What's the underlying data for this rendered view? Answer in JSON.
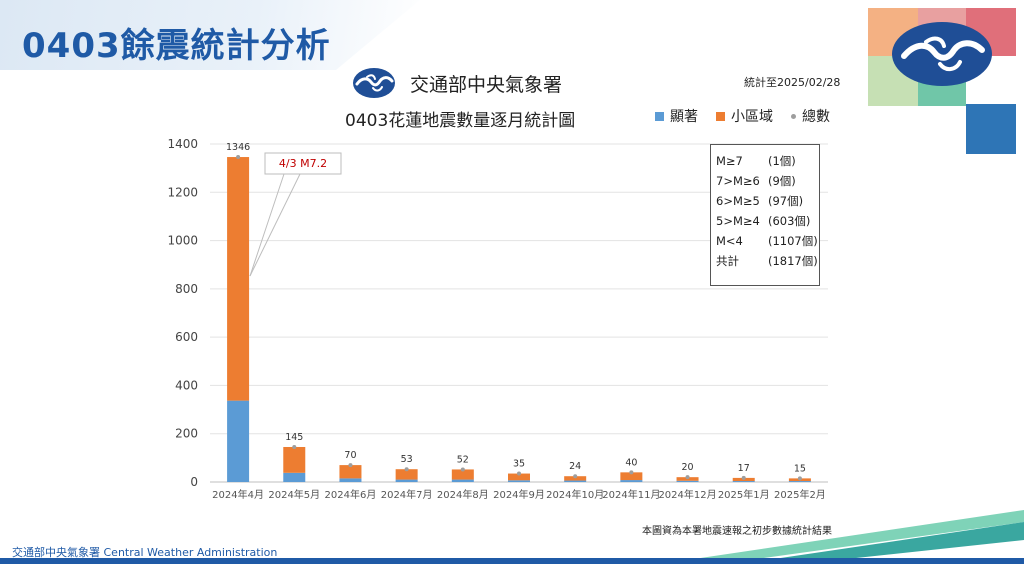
{
  "slide_title": "0403餘震統計分析",
  "agency": {
    "name": "交通部中央氣象署",
    "logo": "cwa-wave-logo"
  },
  "stat_date": "統計至2025/02/28",
  "footer": {
    "agency_text": "交通部中央氣象署 Central Weather Administration",
    "note": "本圖資為本署地震速報之初步數據統計結果"
  },
  "colors": {
    "title": "#1f5aa6",
    "significant": "#5b9bd5",
    "local": "#ed7d31",
    "total_marker": "#9e9e9e",
    "annotation_red": "#c00000"
  },
  "legend": [
    {
      "label": "顯著",
      "type": "bar",
      "color": "#5b9bd5"
    },
    {
      "label": "小區域",
      "type": "bar",
      "color": "#ed7d31"
    },
    {
      "label": "總數",
      "type": "marker",
      "color": "#9e9e9e"
    }
  ],
  "annotation": {
    "text": "4/3 M7.2"
  },
  "magnitude_stats": {
    "rows": [
      {
        "label": "M≥7",
        "value": "(1個)"
      },
      {
        "label": "7>M≥6",
        "value": "(9個)"
      },
      {
        "label": "6>M≥5",
        "value": "(97個)"
      },
      {
        "label": "5>M≥4",
        "value": "(603個)"
      },
      {
        "label": "M<4",
        "value": "(1107個)"
      },
      {
        "label": "共計",
        "value": "(1817個)"
      }
    ]
  },
  "chart_data": {
    "type": "bar",
    "stacked": true,
    "title": "0403花蓮地震數量逐月統計圖",
    "xlabel": "",
    "ylabel": "",
    "categories": [
      "2024年4月",
      "2024年5月",
      "2024年6月",
      "2024年7月",
      "2024年8月",
      "2024年9月",
      "2024年10月",
      "2024年11月",
      "2024年12月",
      "2025年1月",
      "2025年2月"
    ],
    "series": [
      {
        "name": "顯著",
        "values": [
          337,
          38,
          15,
          10,
          10,
          7,
          6,
          8,
          5,
          4,
          4
        ]
      },
      {
        "name": "小區域",
        "values": [
          1009,
          107,
          55,
          43,
          42,
          28,
          18,
          32,
          15,
          13,
          11
        ]
      }
    ],
    "totals": [
      1346,
      145,
      70,
      53,
      52,
      35,
      24,
      40,
      20,
      17,
      15
    ],
    "total_series_name": "總數",
    "ylim": [
      0,
      1400
    ],
    "yticks": [
      0,
      200,
      400,
      600,
      800,
      1000,
      1200,
      1400
    ],
    "grid": true,
    "legend_position": "top-right"
  }
}
